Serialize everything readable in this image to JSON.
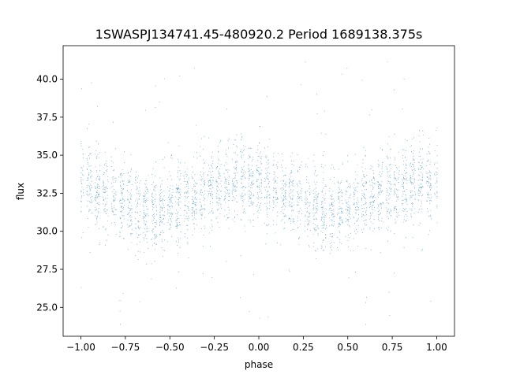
{
  "chart_data": {
    "type": "scatter",
    "title": "1SWASPJ134741.45-480920.2 Period 1689138.375s",
    "xlabel": "phase",
    "ylabel": "flux",
    "xlim": [
      -1.1,
      1.1
    ],
    "ylim": [
      23.1,
      42.2
    ],
    "xticks": [
      -1.0,
      -0.75,
      -0.5,
      -0.25,
      0.0,
      0.25,
      0.5,
      0.75,
      1.0
    ],
    "xtick_labels": [
      "−1.00",
      "−0.75",
      "−0.50",
      "−0.25",
      "0.00",
      "0.25",
      "0.50",
      "0.75",
      "1.00"
    ],
    "yticks": [
      25.0,
      27.5,
      30.0,
      32.5,
      35.0,
      37.5,
      40.0
    ],
    "ytick_labels": [
      "25.0",
      "27.5",
      "30.0",
      "32.5",
      "35.0",
      "37.5",
      "40.0"
    ],
    "grid": false,
    "legend": "none",
    "point_color": "#1f77b4",
    "series": [
      {
        "x_range": [
          -1.0,
          1.0
        ],
        "trend": [
          {
            "phase": -1.0,
            "flux": 33.2
          },
          {
            "phase": -0.9,
            "flux": 32.6
          },
          {
            "phase": -0.8,
            "flux": 32.1
          },
          {
            "phase": -0.7,
            "flux": 31.6
          },
          {
            "phase": -0.6,
            "flux": 31.2
          },
          {
            "phase": -0.5,
            "flux": 31.6
          },
          {
            "phase": -0.4,
            "flux": 32.1
          },
          {
            "phase": -0.3,
            "flux": 32.6
          },
          {
            "phase": -0.2,
            "flux": 33.0
          },
          {
            "phase": -0.1,
            "flux": 33.3
          },
          {
            "phase": 0.0,
            "flux": 33.2
          },
          {
            "phase": 0.1,
            "flux": 32.6
          },
          {
            "phase": 0.2,
            "flux": 32.1
          },
          {
            "phase": 0.3,
            "flux": 31.6
          },
          {
            "phase": 0.4,
            "flux": 31.2
          },
          {
            "phase": 0.5,
            "flux": 31.6
          },
          {
            "phase": 0.6,
            "flux": 32.1
          },
          {
            "phase": 0.7,
            "flux": 32.6
          },
          {
            "phase": 0.8,
            "flux": 33.0
          },
          {
            "phase": 0.9,
            "flux": 33.3
          },
          {
            "phase": 1.0,
            "flux": 33.2
          }
        ],
        "scatter_sd": 1.3,
        "flux_extent": [
          23.6,
          41.2
        ]
      }
    ]
  }
}
